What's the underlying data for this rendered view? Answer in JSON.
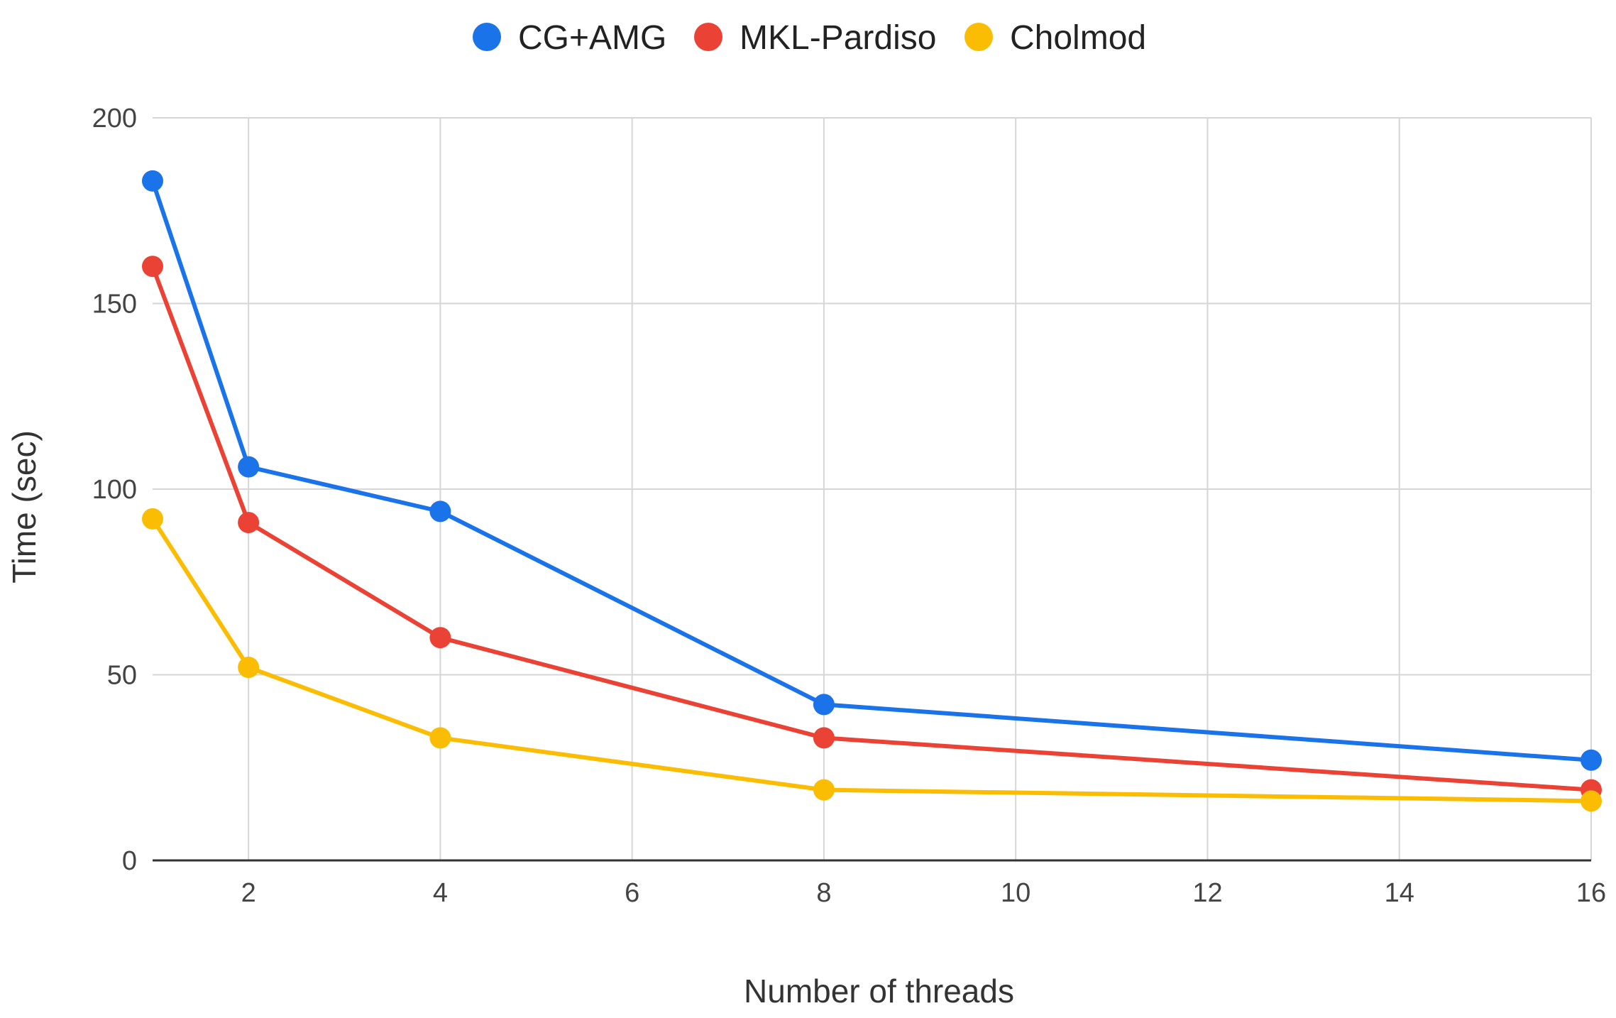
{
  "chart_data": {
    "type": "line",
    "title": "",
    "xlabel": "Number of threads",
    "ylabel": "Time (sec)",
    "xlim": [
      1,
      16
    ],
    "ylim": [
      0,
      200
    ],
    "x_ticks": [
      2,
      4,
      6,
      8,
      10,
      12,
      14,
      16
    ],
    "y_ticks": [
      0,
      50,
      100,
      150,
      200
    ],
    "grid": true,
    "legend_position": "top-center",
    "x": [
      1,
      2,
      4,
      8,
      16
    ],
    "series": [
      {
        "name": "CG+AMG",
        "color": "#1a73e8",
        "values": [
          183,
          106,
          94,
          42,
          27
        ]
      },
      {
        "name": "MKL-Pardiso",
        "color": "#ea4335",
        "values": [
          160,
          91,
          60,
          33,
          19
        ]
      },
      {
        "name": "Cholmod",
        "color": "#fbbc04",
        "values": [
          92,
          52,
          33,
          19,
          16
        ]
      }
    ]
  }
}
